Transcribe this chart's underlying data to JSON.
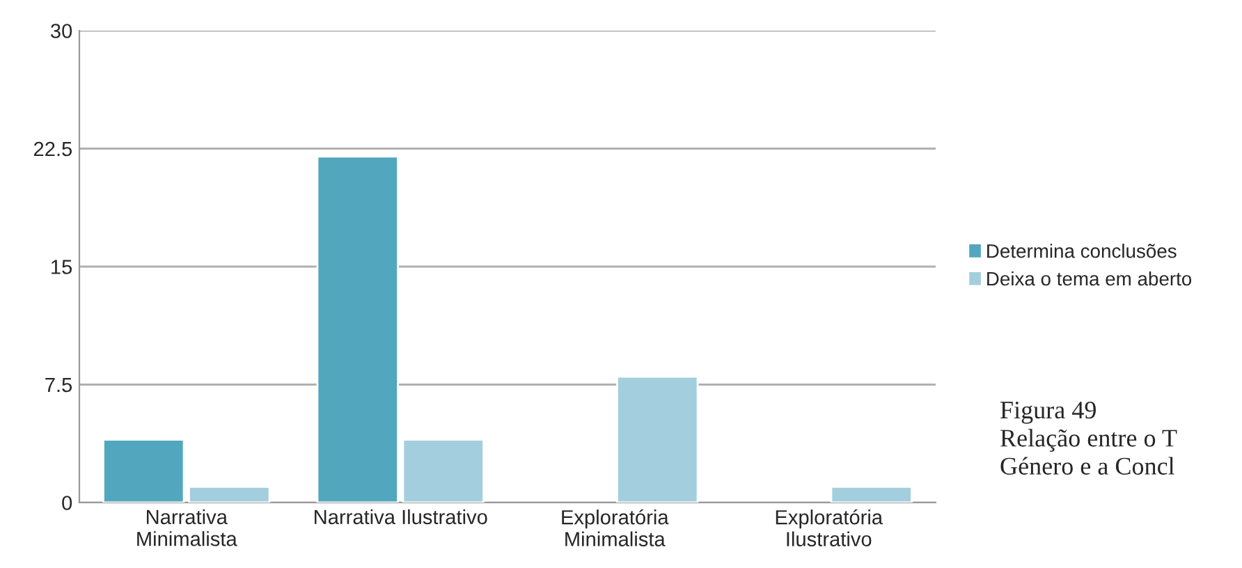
{
  "chart_data": {
    "type": "bar",
    "categories": [
      "Narrativa\nMinimalista",
      "Narrativa Ilustrativo",
      "Exploratória\nMinimalista",
      "Exploratória\nIlustrativo"
    ],
    "series": [
      {
        "name": "Determina conclusões",
        "color": "#52a7bf",
        "values": [
          4,
          22,
          null,
          null
        ]
      },
      {
        "name": "Deixa o tema em aberto",
        "color": "#a3cedd",
        "values": [
          1,
          4,
          8,
          1
        ]
      }
    ],
    "ylim": [
      0,
      30
    ],
    "yticks": [
      0,
      7.5,
      15,
      22.5,
      30
    ],
    "grid": "y",
    "legend": "right",
    "annotations": [
      "Figura 49\nRelação entre o T\nGénero e a Concl"
    ]
  }
}
